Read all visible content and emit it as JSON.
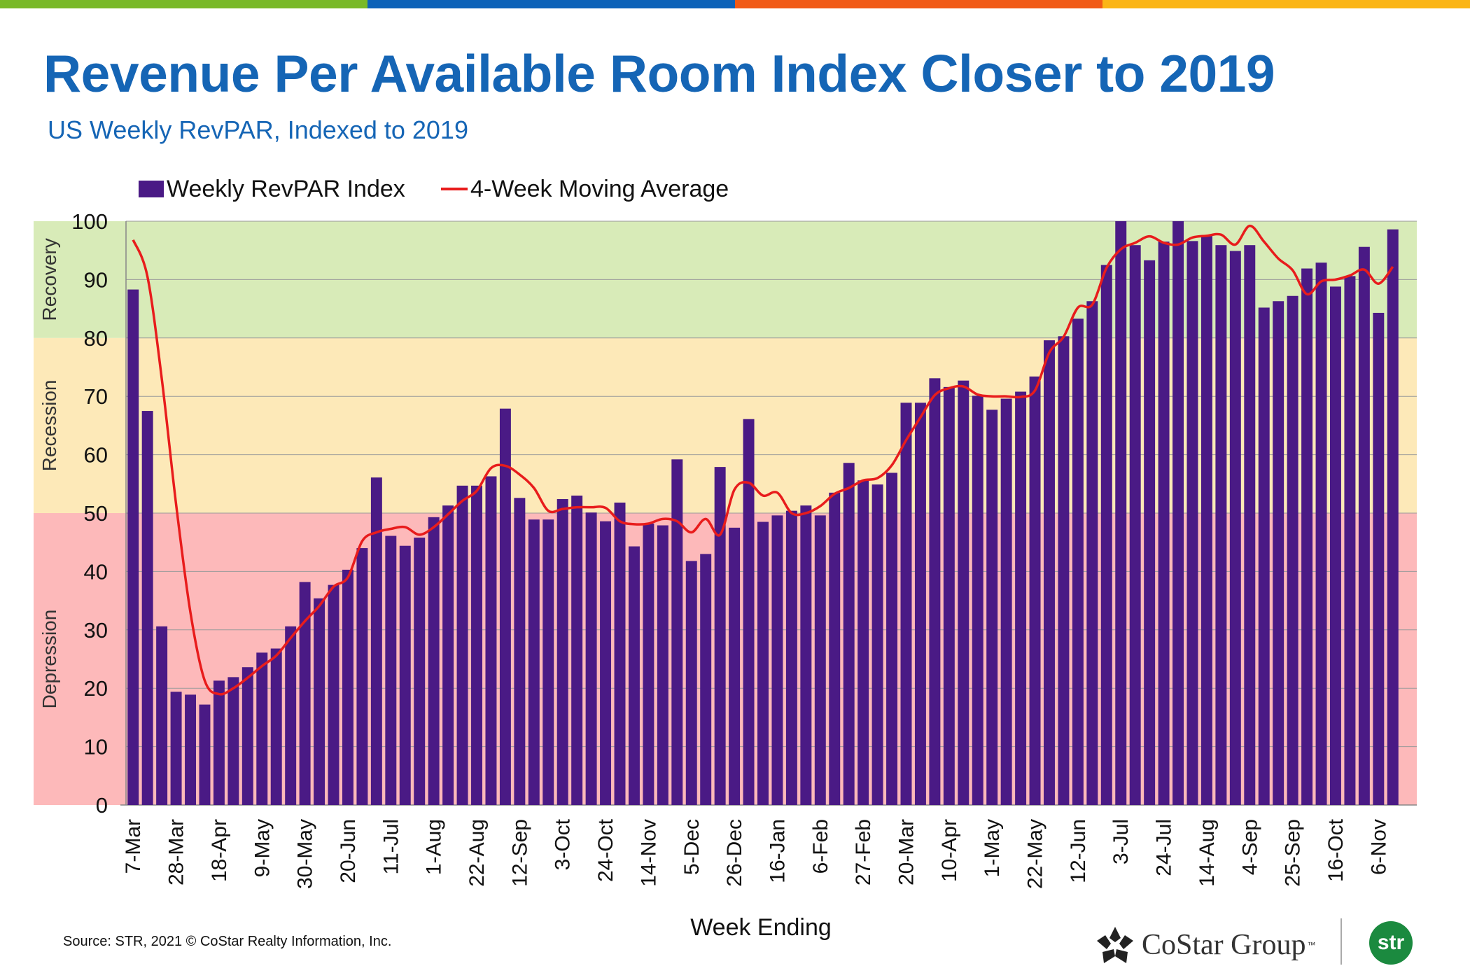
{
  "header": {
    "title": "Revenue Per Available Room Index Closer to 2019",
    "subtitle": "US Weekly RevPAR, Indexed to 2019",
    "bar_colors": [
      "#79b928",
      "#0d62b8",
      "#f15a16",
      "#fbb516"
    ]
  },
  "footer": {
    "source": "Source: STR, 2021 © CoStar Realty Information, Inc.",
    "costar_logo_text": "CoStar Group",
    "costar_tm": "™",
    "str_logo_text": "str"
  },
  "colors": {
    "bar": "#4a1a85",
    "line": "#e81c1c",
    "zone_depression": "#fdb9ba",
    "zone_recession": "#fde9b8",
    "zone_recovery": "#d8ebb8"
  },
  "chart_data": {
    "type": "bar",
    "title": "Revenue Per Available Room Index Closer to 2019",
    "subtitle": "US Weekly RevPAR, Indexed to 2019",
    "xlabel": "Week Ending",
    "ylabel": "",
    "ylim": [
      0,
      100
    ],
    "yticks": [
      0,
      10,
      20,
      30,
      40,
      50,
      60,
      70,
      80,
      90,
      100
    ],
    "grid": true,
    "legend_position": "top",
    "zones": [
      {
        "label": "Depression",
        "from": 0,
        "to": 50
      },
      {
        "label": "Recession",
        "from": 50,
        "to": 80
      },
      {
        "label": "Recovery",
        "from": 80,
        "to": 100
      }
    ],
    "tick_labels": [
      "7-Mar",
      "28-Mar",
      "18-Apr",
      "9-May",
      "30-May",
      "20-Jun",
      "11-Jul",
      "1-Aug",
      "22-Aug",
      "12-Sep",
      "3-Oct",
      "24-Oct",
      "14-Nov",
      "5-Dec",
      "26-Dec",
      "16-Jan",
      "6-Feb",
      "27-Feb",
      "20-Mar",
      "10-Apr",
      "1-May",
      "22-May",
      "12-Jun",
      "3-Jul",
      "24-Jul",
      "14-Aug",
      "4-Sep",
      "25-Sep",
      "16-Oct",
      "6-Nov"
    ],
    "tick_every": 3,
    "series": [
      {
        "name": "Weekly RevPAR Index",
        "type": "bar",
        "values": [
          88.3,
          67.5,
          30.6,
          19.4,
          18.9,
          17.2,
          21.3,
          21.9,
          23.6,
          26.1,
          26.8,
          30.6,
          38.2,
          35.4,
          37.7,
          40.3,
          44.0,
          56.1,
          46.1,
          44.4,
          45.8,
          49.3,
          51.3,
          54.7,
          54.7,
          56.3,
          67.9,
          52.6,
          48.9,
          48.9,
          52.4,
          53.0,
          50.1,
          48.6,
          51.8,
          44.3,
          48.2,
          47.9,
          59.2,
          41.8,
          43.0,
          57.9,
          47.5,
          66.1,
          48.5,
          49.6,
          50.4,
          51.3,
          49.6,
          53.5,
          58.6,
          55.6,
          54.9,
          56.9,
          68.9,
          68.9,
          73.1,
          71.6,
          72.7,
          70.1,
          67.7,
          69.6,
          70.8,
          73.4,
          79.6,
          80.3,
          83.3,
          86.3,
          92.5,
          100.0,
          95.9,
          93.3,
          96.5,
          100.0,
          96.6,
          97.5,
          95.9,
          94.9,
          95.9,
          85.2,
          86.3,
          87.2,
          91.9,
          92.9,
          88.8,
          90.6,
          95.6,
          84.3,
          98.6
        ]
      },
      {
        "name": "4-Week Moving Average",
        "type": "line",
        "values": [
          96.8,
          90.5,
          73.0,
          51.5,
          33.0,
          21.3,
          19.0,
          20.0,
          21.8,
          23.8,
          25.6,
          28.6,
          31.5,
          34.1,
          37.4,
          39.0,
          45.2,
          46.7,
          47.3,
          47.6,
          46.3,
          47.6,
          49.8,
          52.1,
          53.8,
          57.7,
          58.1,
          56.6,
          54.3,
          50.4,
          50.7,
          51.0,
          51.0,
          50.9,
          48.6,
          48.1,
          48.2,
          49.0,
          48.6,
          46.7,
          49.0,
          46.3,
          54.0,
          55.2,
          53.0,
          53.5,
          50.0,
          50.0,
          51.2,
          53.3,
          54.3,
          55.6,
          56.0,
          58.2,
          62.5,
          66.4,
          70.2,
          71.4,
          71.7,
          70.3,
          70.0,
          70.0,
          69.9,
          71.0,
          77.5,
          80.2,
          85.2,
          85.7,
          92.0,
          95.2,
          96.3,
          97.4,
          96.3,
          96.0,
          97.2,
          97.5,
          97.7,
          96.0,
          99.2,
          96.5,
          93.6,
          91.6,
          87.5,
          89.7,
          90.0,
          90.7,
          91.7,
          89.3,
          92.2
        ]
      }
    ]
  }
}
